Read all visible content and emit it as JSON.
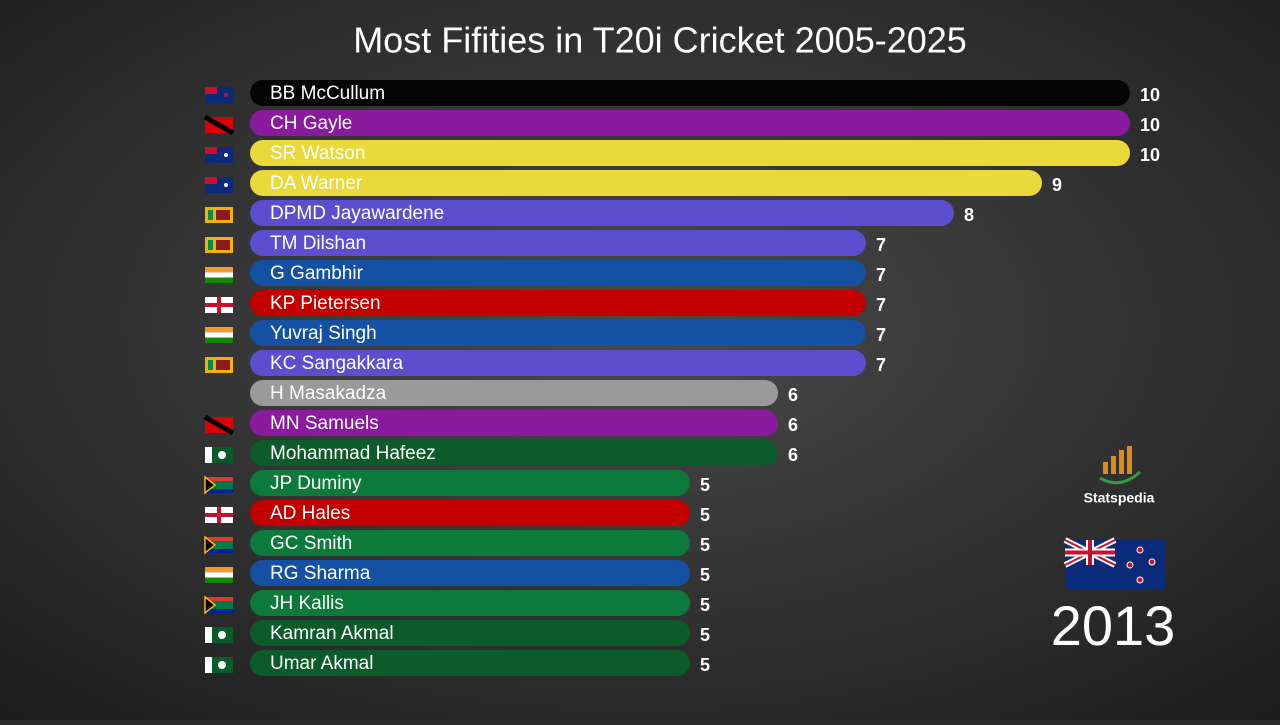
{
  "chart_data": {
    "type": "bar",
    "orientation": "horizontal",
    "title": "Most Fifities in T20i Cricket 2005-2025",
    "categories": [
      "BB McCullum",
      "CH Gayle",
      "SR Watson",
      "DA Warner",
      "DPMD Jayawardene",
      "TM Dilshan",
      "G Gambhir",
      "KP Pietersen",
      "Yuvraj Singh",
      "KC Sangakkara",
      "H Masakadza",
      "MN Samuels",
      "Mohammad Hafeez",
      "JP Duminy",
      "AD Hales",
      "GC Smith",
      "RG Sharma",
      "JH Kallis",
      "Kamran Akmal",
      "Umar Akmal"
    ],
    "values": [
      10,
      10,
      10,
      9,
      8,
      7,
      7,
      7,
      7,
      7,
      6,
      6,
      6,
      5,
      5,
      5,
      5,
      5,
      5,
      5
    ],
    "colors": [
      "#050505",
      "#8a1a9e",
      "#e9d93a",
      "#e9d93a",
      "#5b4fd0",
      "#5b4fd0",
      "#1451a3",
      "#c20000",
      "#1451a3",
      "#5b4fd0",
      "#9a9a9a",
      "#8a1a9e",
      "#0d5a2a",
      "#0b7a3b",
      "#c20000",
      "#0b7a3b",
      "#1451a3",
      "#0b7a3b",
      "#0d5a2a",
      "#0d5a2a"
    ],
    "year": "2013",
    "brand": "Statspedia"
  }
}
